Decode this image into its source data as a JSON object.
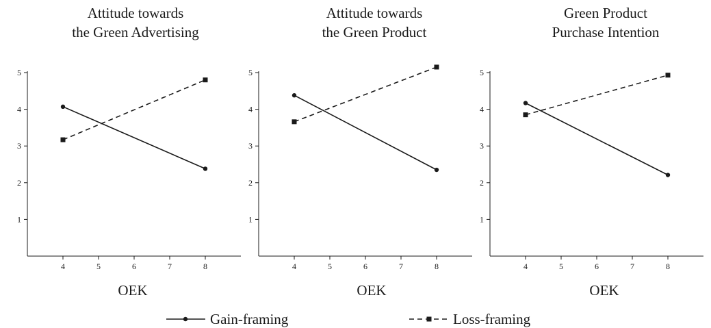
{
  "chart_data": [
    {
      "type": "line",
      "title": [
        "Attitude towards",
        "the Green Advertising"
      ],
      "xlabel": "OEK",
      "xticks": [
        4,
        5,
        6,
        7,
        8
      ],
      "yticks": [
        1,
        2,
        3,
        4,
        5
      ],
      "xlim": [
        3,
        9
      ],
      "ylim": [
        0,
        5
      ],
      "series": [
        {
          "name": "Gain-framing",
          "style": "solid",
          "marker": "circle",
          "x": [
            4,
            8
          ],
          "y": [
            4.07,
            2.38
          ]
        },
        {
          "name": "Loss-framing",
          "style": "dashed",
          "marker": "square",
          "x": [
            4,
            8
          ],
          "y": [
            3.17,
            4.8
          ]
        }
      ]
    },
    {
      "type": "line",
      "title": [
        "Attitude towards",
        "the Green Product"
      ],
      "xlabel": "OEK",
      "xticks": [
        4,
        5,
        6,
        7,
        8
      ],
      "yticks": [
        1,
        2,
        3,
        4,
        5
      ],
      "xlim": [
        3,
        9
      ],
      "ylim": [
        0,
        5
      ],
      "series": [
        {
          "name": "Gain-framing",
          "style": "solid",
          "marker": "circle",
          "x": [
            4,
            8
          ],
          "y": [
            4.38,
            2.35
          ]
        },
        {
          "name": "Loss-framing",
          "style": "dashed",
          "marker": "square",
          "x": [
            4,
            8
          ],
          "y": [
            3.66,
            5.15
          ]
        }
      ]
    },
    {
      "type": "line",
      "title": [
        "Green Product",
        "Purchase Intention"
      ],
      "xlabel": "OEK",
      "xticks": [
        4,
        5,
        6,
        7,
        8
      ],
      "yticks": [
        1,
        2,
        3,
        4,
        5
      ],
      "xlim": [
        3,
        9
      ],
      "ylim": [
        0,
        5
      ],
      "series": [
        {
          "name": "Gain-framing",
          "style": "solid",
          "marker": "circle",
          "x": [
            4,
            8
          ],
          "y": [
            4.17,
            2.21
          ]
        },
        {
          "name": "Loss-framing",
          "style": "dashed",
          "marker": "square",
          "x": [
            4,
            8
          ],
          "y": [
            3.85,
            4.93
          ]
        }
      ]
    }
  ],
  "legend": {
    "placement": "bottom-center",
    "items": [
      {
        "label": "Gain-framing",
        "style": "solid",
        "marker": "circle"
      },
      {
        "label": "Loss-framing",
        "style": "dashed",
        "marker": "square"
      }
    ]
  },
  "colors": {
    "ink": "#1a1a1a",
    "background": "#ffffff"
  }
}
